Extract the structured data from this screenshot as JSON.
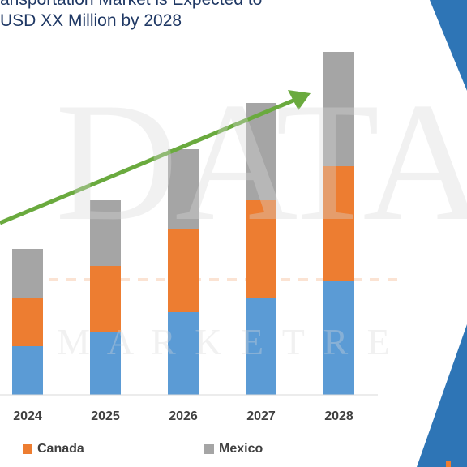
{
  "title_lines": [
    "ansportation Market is Expected to",
    "USD XX Million by 2028"
  ],
  "watermark": {
    "main": "DATABR",
    "sub": "M A R K E T R E"
  },
  "colors": {
    "us": "#5b9bd5",
    "canada": "#ed7d31",
    "mexico": "#a5a5a5",
    "arrow": "#6aaa3e",
    "accent_blue": "#2e75b6",
    "title": "#1f3864"
  },
  "legend": [
    {
      "label": "Canada",
      "color": "#ed7d31"
    },
    {
      "label": "Mexico",
      "color": "#a5a5a5"
    }
  ],
  "chart_data": {
    "type": "bar",
    "stacked": true,
    "categories": [
      "2024",
      "2025",
      "2026",
      "2027",
      "2028"
    ],
    "series": [
      {
        "name": "",
        "color": "#5b9bd5",
        "values": [
          10,
          13,
          17,
          20,
          23.5
        ]
      },
      {
        "name": "Canada",
        "color": "#ed7d31",
        "values": [
          10,
          13.5,
          17,
          20,
          23.5
        ]
      },
      {
        "name": "Mexico",
        "color": "#a5a5a5",
        "values": [
          10,
          13.5,
          16.5,
          20,
          23.5
        ]
      }
    ],
    "ylim": [
      0,
      80
    ],
    "grid": false,
    "legend_position": "bottom",
    "trend_arrow": true
  }
}
